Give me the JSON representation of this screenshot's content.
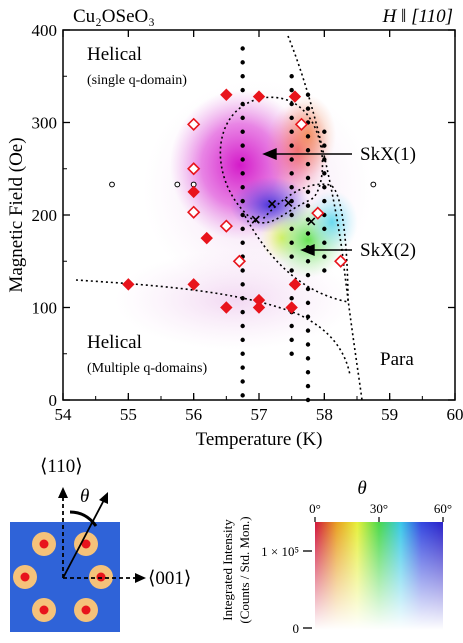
{
  "colors": {
    "diamond": "#e8141c",
    "marker_dot": "#000000",
    "schematic_background": "#2f63d8",
    "spot_ring": "#f5c27a",
    "spot_center": "#e8141c"
  },
  "chart_data": {
    "type": "scatter",
    "title_left": "Cu₂OSeO₃",
    "title_right": "H ‖ [110]",
    "xlabel": "Temperature (K)",
    "ylabel": "Magnetic Field (Oe)",
    "xlim": [
      54,
      60
    ],
    "ylim": [
      0,
      400
    ],
    "xticks": [
      "54",
      "55",
      "56",
      "57",
      "58",
      "59",
      "60"
    ],
    "yticks": [
      "0",
      "100",
      "200",
      "300",
      "400"
    ],
    "annotations": {
      "helical_top": "Helical",
      "helical_top_sub": "(single q-domain)",
      "skx1": "SkX(1)",
      "skx2": "SkX(2)",
      "helical_bottom": "Helical",
      "helical_bottom_sub": "(Multiple q-domains)",
      "para": "Para"
    },
    "measurement_columns": [
      {
        "x": 56.75,
        "y": [
          380,
          365,
          350,
          335,
          320,
          305,
          290,
          275,
          260,
          245,
          230,
          215,
          200,
          185,
          170,
          155,
          140,
          125,
          110,
          95,
          80,
          65,
          50,
          35,
          20,
          5
        ]
      },
      {
        "x": 57.5,
        "y": [
          350,
          335,
          320,
          305,
          290,
          275,
          260,
          245,
          230,
          215,
          200,
          185,
          170,
          155,
          140,
          125,
          110,
          95,
          80,
          65,
          50
        ]
      },
      {
        "x": 57.75,
        "y": [
          330,
          315,
          300,
          285,
          270,
          255,
          240,
          225,
          210,
          195,
          180,
          165,
          150,
          135,
          120,
          105,
          90,
          75,
          60,
          45,
          30,
          15,
          0
        ]
      },
      {
        "x": 58.0,
        "y": [
          290,
          275,
          260,
          245,
          230,
          215,
          200,
          185,
          170,
          155,
          140
        ]
      }
    ],
    "open_circle_points": [
      {
        "x": 54.75,
        "y": 233
      },
      {
        "x": 55.75,
        "y": 233
      },
      {
        "x": 56.0,
        "y": 233
      },
      {
        "x": 58.75,
        "y": 233
      }
    ],
    "filled_diamonds": [
      {
        "x": 56.5,
        "y": 330
      },
      {
        "x": 57.0,
        "y": 328
      },
      {
        "x": 57.55,
        "y": 328
      },
      {
        "x": 56.0,
        "y": 225
      },
      {
        "x": 56.2,
        "y": 175
      },
      {
        "x": 55.0,
        "y": 125
      },
      {
        "x": 56.0,
        "y": 125
      },
      {
        "x": 57.0,
        "y": 108
      },
      {
        "x": 57.55,
        "y": 125
      },
      {
        "x": 56.5,
        "y": 100
      },
      {
        "x": 57.0,
        "y": 100
      },
      {
        "x": 57.5,
        "y": 100
      }
    ],
    "open_diamonds": [
      {
        "x": 56.0,
        "y": 298
      },
      {
        "x": 57.65,
        "y": 298
      },
      {
        "x": 56.0,
        "y": 250
      },
      {
        "x": 56.0,
        "y": 203
      },
      {
        "x": 57.9,
        "y": 202
      },
      {
        "x": 56.5,
        "y": 188
      },
      {
        "x": 56.7,
        "y": 150
      },
      {
        "x": 58.25,
        "y": 150
      }
    ],
    "cross_points": [
      {
        "x": 56.95,
        "y": 195
      },
      {
        "x": 57.2,
        "y": 212
      },
      {
        "x": 57.45,
        "y": 213
      },
      {
        "x": 57.8,
        "y": 193
      }
    ]
  },
  "schematic": {
    "label_110": "⟨110⟩",
    "label_001": "⟨001⟩",
    "theta": "θ"
  },
  "colorbar": {
    "theta_label": "θ",
    "ylabel_line1": "Integrated Intensity",
    "ylabel_line2": "(Counts / Std. Mon.)",
    "tick_high": "1 × 10⁵",
    "tick_zero": "0",
    "angle_ticks": [
      "0°",
      "30°",
      "60°"
    ]
  }
}
